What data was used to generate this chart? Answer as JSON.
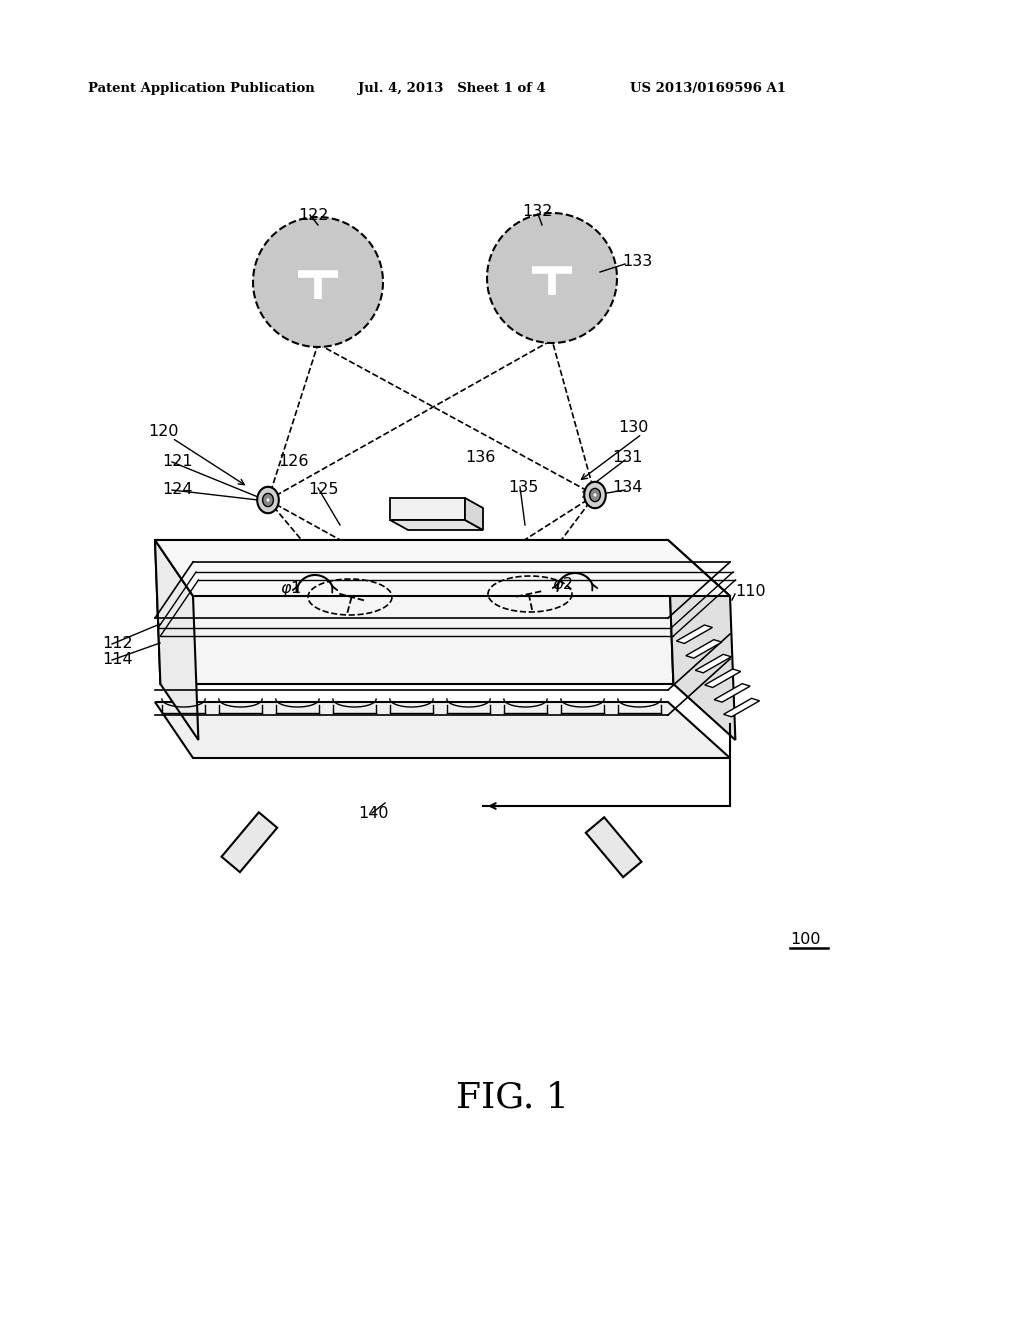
{
  "header_left": "Patent Application Publication",
  "header_mid": "Jul. 4, 2013   Sheet 1 of 4",
  "header_right": "US 2013/0169596 A1",
  "figure_label": "FIG. 1",
  "bg_color": "#ffffff",
  "line_color": "#000000",
  "gray_circle_fill": "#c8c8c8",
  "light_gray": "#e8e8e8",
  "box_top_fill": "#f0f0f0",
  "box_front_fill": "#f5f5f5",
  "box_right_fill": "#e0e0e0",
  "box_left_fill": "#ebebeb"
}
